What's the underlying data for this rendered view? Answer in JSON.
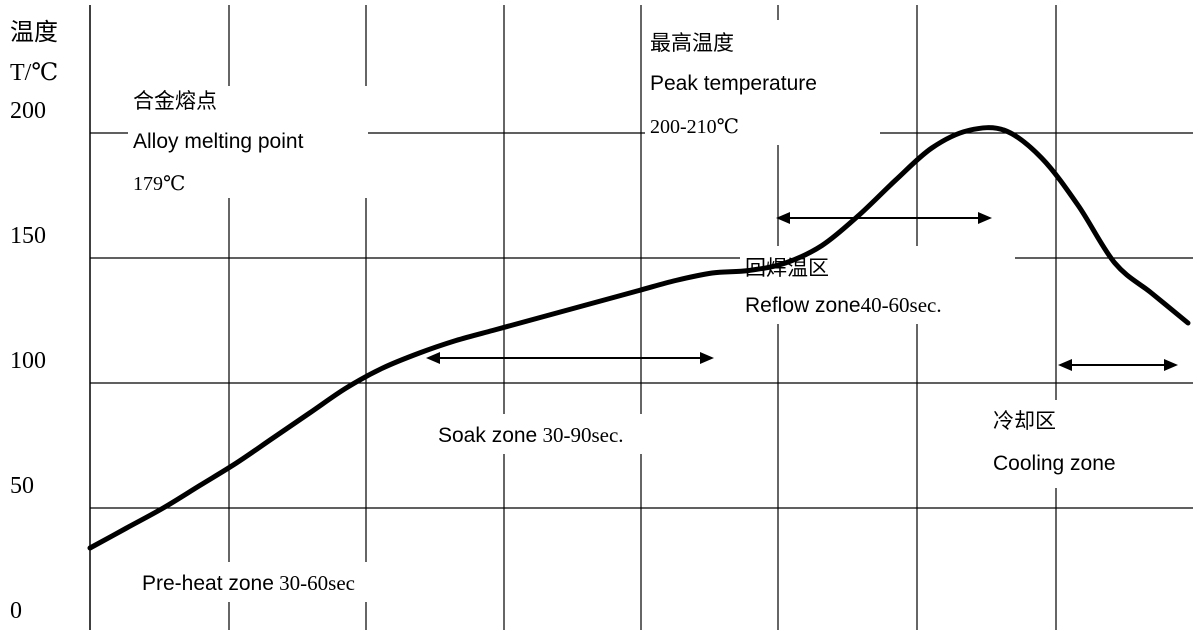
{
  "chart_data": {
    "type": "line",
    "title": "",
    "ylabel": "温度",
    "ylabel_unit": "T/℃",
    "yticks": [
      "200",
      "150",
      "100",
      "50",
      "0"
    ],
    "ylim": [
      0,
      200
    ],
    "grid": true,
    "series": [
      {
        "x": [
          0,
          10,
          20,
          30,
          40,
          50,
          60,
          70,
          80,
          90,
          100,
          110,
          120,
          130,
          140,
          150,
          160,
          170,
          180,
          190,
          200,
          210,
          220,
          230,
          240,
          250,
          260,
          270,
          280,
          290,
          300
        ],
        "values": [
          34,
          42,
          50,
          59,
          68,
          78,
          88,
          98,
          106,
          112,
          117,
          121,
          125,
          129,
          133,
          137,
          141,
          144,
          145,
          148,
          155,
          167,
          181,
          194,
          201,
          201,
          190,
          171,
          148,
          136,
          124
        ],
        "style": "thick black line"
      }
    ],
    "zones": [
      {
        "label_cn": "",
        "label_en": "Pre-heat zone",
        "label_time": "30-60sec"
      },
      {
        "label_cn": "",
        "label_en": "Soak zone",
        "label_time": "30-90sec."
      },
      {
        "label_cn": "回焊温区",
        "label_en": "Reflow zone",
        "label_time": "40-60sec."
      },
      {
        "label_cn": "冷却区",
        "label_en": "Cooling zone",
        "label_time": ""
      }
    ],
    "annotations": {
      "melting_cn": "合金熔点",
      "melting_en": "Alloy melting point",
      "melting_value": "179℃",
      "peak_cn": "最高温度",
      "peak_en": "Peak temperature",
      "peak_value": "200-210℃"
    }
  }
}
